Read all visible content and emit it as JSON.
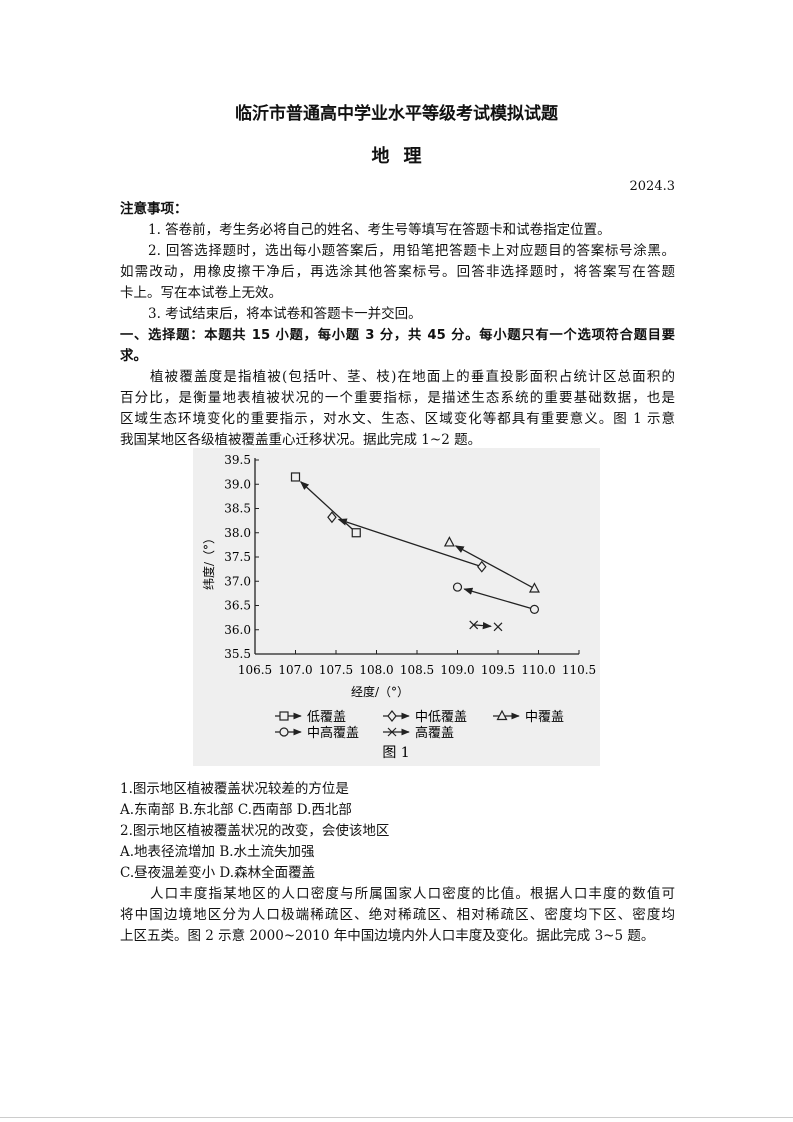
{
  "header": {
    "title": "临沂市普通高中学业水平等级考试模拟试题",
    "subject": "地理",
    "date": "2024.3"
  },
  "notice": {
    "heading": "注意事项：",
    "lines": [
      "1. 答卷前，考生务必将自己的姓名、考生号等填写在答题卡和试卷指定位置。",
      "2. 回答选择题时，选出每小题答案后，用铅笔把答题卡上对应题目的答案标号涂黑。",
      "如需改动，用橡皮擦干净后，再选涂其他答案标号。回答非选择题时，将答案写在答题",
      "卡上。写在本试卷上无效。",
      "3. 考试结束后，将本试卷和答题卡一并交回。"
    ]
  },
  "section": {
    "lines": [
      "一、选择题：本题共 15 小题，每小题 3 分，共 45 分。每小题只有一个选项符合题目要",
      "求。"
    ]
  },
  "passage1": {
    "lines": [
      "植被覆盖度是指植被(包括叶、茎、枝)在地面上的垂直投影面积占统计区总面积的",
      "百分比，是衡量地表植被状况的一个重要指标，是描述生态系统的重要基础数据，也是",
      "区域生态环境变化的重要指示，对水文、生态、区域变化等都具有重要意义。图 1 示意",
      "我国某地区各级植被覆盖重心迁移状况。据此完成 1~2 题。"
    ]
  },
  "chart_data": {
    "type": "scatter",
    "caption": "图 1",
    "xlabel": "经度/（°）",
    "ylabel": "纬度/（°）",
    "xlim": [
      106.5,
      110.5
    ],
    "ylim": [
      35.5,
      39.5
    ],
    "xticks": [
      "106.5",
      "107.0",
      "107.5",
      "108.0",
      "108.5",
      "109.0",
      "109.5",
      "110.0",
      "110.5"
    ],
    "yticks": [
      "35.5",
      "36.0",
      "36.5",
      "37.0",
      "37.5",
      "38.0",
      "38.5",
      "39.0",
      "39.5"
    ],
    "grid": false,
    "legend_position": "bottom",
    "series": [
      {
        "name": "低覆盖",
        "marker": "square",
        "from": [
          107.75,
          38.0
        ],
        "to": [
          107.0,
          39.15
        ]
      },
      {
        "name": "中低覆盖",
        "marker": "diamond",
        "from": [
          109.3,
          37.3
        ],
        "to": [
          107.45,
          38.32
        ]
      },
      {
        "name": "中覆盖",
        "marker": "triangle",
        "from": [
          109.95,
          36.85
        ],
        "to": [
          108.9,
          37.8
        ]
      },
      {
        "name": "中高覆盖",
        "marker": "circle",
        "from": [
          109.95,
          36.42
        ],
        "to": [
          109.0,
          36.88
        ]
      },
      {
        "name": "高覆盖",
        "marker": "cross",
        "from": [
          109.2,
          36.1
        ],
        "to": [
          109.5,
          36.06
        ]
      }
    ]
  },
  "questions": {
    "lines": [
      "1.图示地区植被覆盖状况较差的方位是",
      "A.东南部 B.东北部 C.西南部 D.西北部",
      "2.图示地区植被覆盖状况的改变，会使该地区",
      "A.地表径流增加 B.水土流失加强",
      "C.昼夜温差变小 D.森林全面覆盖"
    ]
  },
  "passage2": {
    "lines": [
      "人口丰度指某地区的人口密度与所属国家人口密度的比值。根据人口丰度的数值可",
      "将中国边境地区分为人口极端稀疏区、绝对稀疏区、相对稀疏区、密度均下区、密度均",
      "上区五类。图 2 示意 2000~2010 年中国边境内外人口丰度及变化。据此完成 3~5 题。"
    ]
  }
}
